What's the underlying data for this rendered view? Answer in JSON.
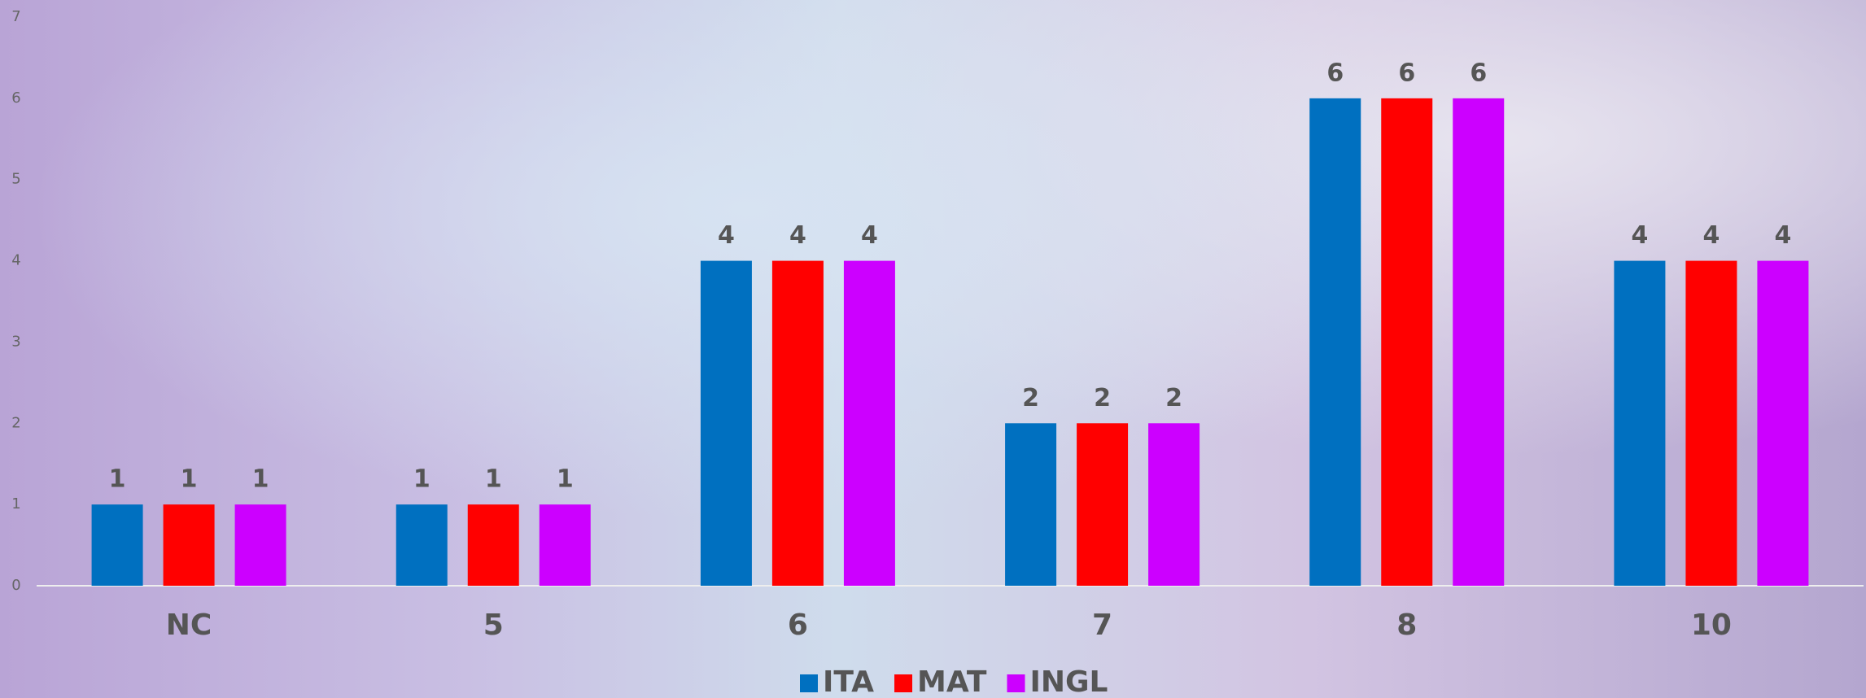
{
  "chart_data": {
    "type": "bar",
    "categories": [
      "NC",
      "5",
      "6",
      "7",
      "8",
      "10"
    ],
    "series": [
      {
        "name": "ITA",
        "color": "#0070c0",
        "values": [
          1,
          1,
          4,
          2,
          6,
          4
        ]
      },
      {
        "name": "MAT",
        "color": "#ff0000",
        "values": [
          1,
          1,
          4,
          2,
          6,
          4
        ]
      },
      {
        "name": "INGL",
        "color": "#cc00ff",
        "values": [
          1,
          1,
          4,
          2,
          6,
          4
        ]
      }
    ],
    "ylim": [
      0,
      7
    ],
    "yticks": [
      0,
      1,
      2,
      3,
      4,
      5,
      6,
      7
    ],
    "grid": false,
    "legend": "bottom"
  }
}
